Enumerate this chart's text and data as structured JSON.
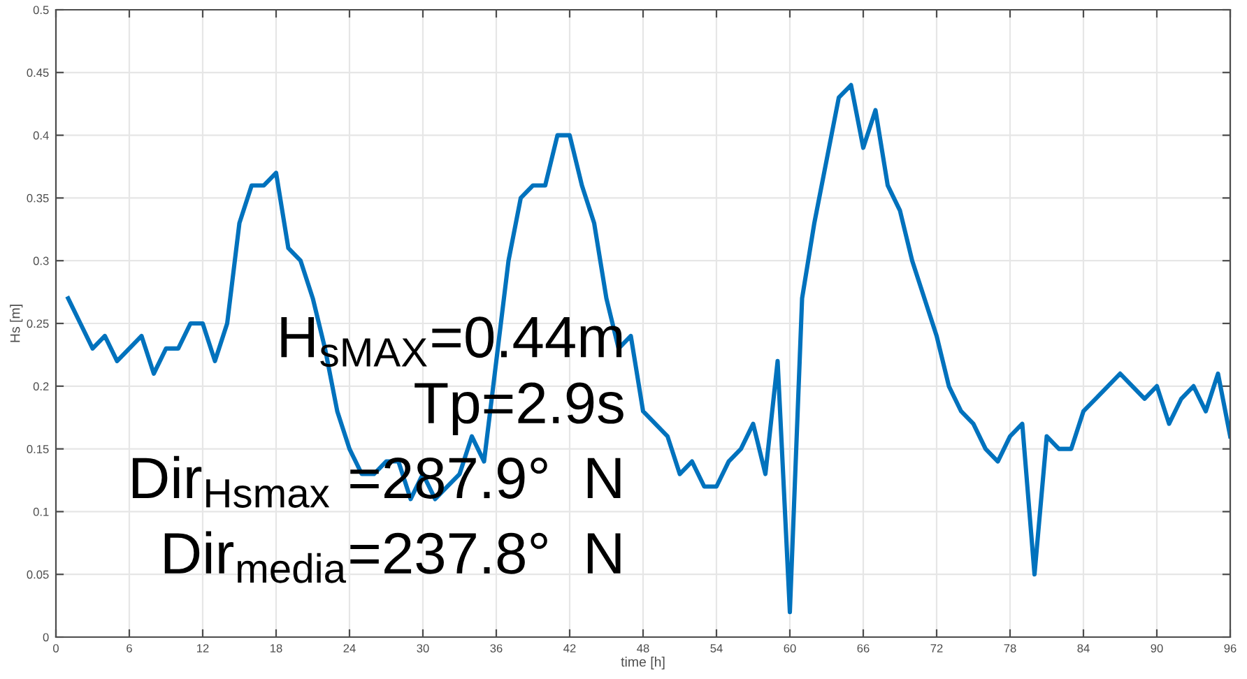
{
  "chart_data": {
    "type": "line",
    "xlabel": "time [h]",
    "ylabel": "Hs [m]",
    "x": [
      1,
      2,
      3,
      4,
      5,
      6,
      7,
      8,
      9,
      10,
      11,
      12,
      13,
      14,
      15,
      16,
      17,
      18,
      19,
      20,
      21,
      22,
      23,
      24,
      25,
      26,
      27,
      28,
      29,
      30,
      31,
      32,
      33,
      34,
      35,
      36,
      37,
      38,
      39,
      40,
      41,
      42,
      43,
      44,
      45,
      46,
      47,
      48,
      49,
      50,
      51,
      52,
      53,
      54,
      55,
      56,
      57,
      58,
      59,
      60,
      61,
      62,
      63,
      64,
      65,
      66,
      67,
      68,
      69,
      70,
      71,
      72,
      73,
      74,
      75,
      76,
      77,
      78,
      79,
      80,
      81,
      82,
      83,
      84,
      85,
      86,
      87,
      88,
      89,
      90,
      91,
      92,
      93,
      94,
      95,
      96
    ],
    "series": [
      {
        "color": "#0072bd",
        "values": [
          0.27,
          0.25,
          0.23,
          0.24,
          0.22,
          0.23,
          0.24,
          0.21,
          0.23,
          0.23,
          0.25,
          0.25,
          0.22,
          0.25,
          0.33,
          0.36,
          0.36,
          0.37,
          0.31,
          0.3,
          0.27,
          0.23,
          0.18,
          0.15,
          0.13,
          0.13,
          0.14,
          0.14,
          0.11,
          0.13,
          0.11,
          0.12,
          0.13,
          0.16,
          0.14,
          0.22,
          0.3,
          0.35,
          0.36,
          0.36,
          0.4,
          0.4,
          0.36,
          0.33,
          0.27,
          0.23,
          0.24,
          0.18,
          0.17,
          0.16,
          0.13,
          0.14,
          0.12,
          0.12,
          0.14,
          0.15,
          0.17,
          0.13,
          0.22,
          0.02,
          0.27,
          0.33,
          0.38,
          0.43,
          0.44,
          0.39,
          0.42,
          0.36,
          0.34,
          0.3,
          0.27,
          0.24,
          0.2,
          0.18,
          0.17,
          0.15,
          0.14,
          0.16,
          0.17,
          0.05,
          0.16,
          0.15,
          0.15,
          0.18,
          0.19,
          0.2,
          0.21,
          0.2,
          0.19,
          0.2,
          0.17,
          0.19,
          0.2,
          0.18,
          0.21,
          0.16
        ]
      }
    ],
    "xlim": [
      0,
      96
    ],
    "xticks": [
      0,
      6,
      12,
      18,
      24,
      30,
      36,
      42,
      48,
      54,
      60,
      66,
      72,
      78,
      84,
      90,
      96
    ],
    "ylim": [
      0,
      0.5
    ],
    "yticks": [
      0,
      0.05,
      0.1,
      0.15,
      0.2,
      0.25,
      0.3,
      0.35,
      0.4,
      0.45,
      0.5
    ],
    "grid": true,
    "marker": "none",
    "line_style": "solid",
    "annotations": [
      "H$_{sMAX}$=0.44m",
      "Tp=2.9s",
      "Dir$_{Hsmax}$ =287.9°  N",
      "Dir$_{media}$=237.8°  N"
    ]
  }
}
